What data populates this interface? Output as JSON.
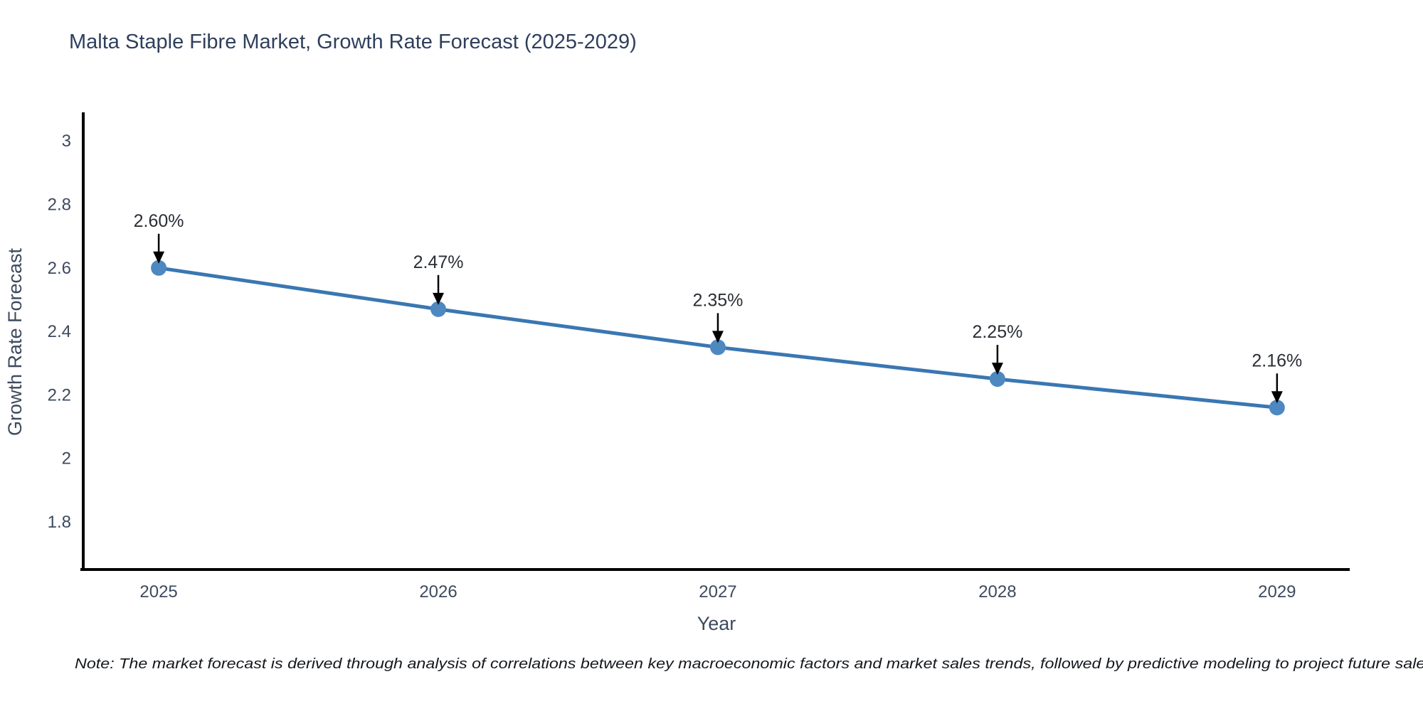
{
  "title": {
    "text": "Malta Staple Fibre Market, Growth Rate Forecast (2025-2029)",
    "color": "#2f3f5c"
  },
  "note": {
    "text": "Note: The market forecast is derived through analysis of correlations between key macroeconomic factors and market sales trends, followed by predictive modeling to project future sales"
  },
  "chart_data": {
    "type": "line",
    "title": "Malta Staple Fibre Market, Growth Rate Forecast (2025-2029)",
    "xlabel": "Year",
    "ylabel": "Growth Rate Forecast",
    "x": [
      2025,
      2026,
      2027,
      2028,
      2029
    ],
    "x_tick_labels": [
      "2025",
      "2026",
      "2027",
      "2028",
      "2029"
    ],
    "values": [
      2.6,
      2.47,
      2.35,
      2.25,
      2.16
    ],
    "point_labels": [
      "2.60%",
      "2.47%",
      "2.35%",
      "2.25%",
      "2.16%"
    ],
    "y_tick_values": [
      1.8,
      2,
      2.2,
      2.4,
      2.6,
      2.8,
      3
    ],
    "y_tick_labels": [
      "1.8",
      "2",
      "2.2",
      "2.4",
      "2.6",
      "2.8",
      "3"
    ],
    "xlim": [
      2024.73,
      2029.26
    ],
    "ylim": [
      1.65,
      3.09
    ],
    "grid": false,
    "legend": "none",
    "annotations": "black down-arrow from each value label to its data point",
    "colors": {
      "line": "#3a77b2",
      "marker": "#4d88c0",
      "axis": "#000000",
      "arrow": "#000000",
      "tick_text": "#3d4a5d",
      "point_label_text": "#2a2e35",
      "title_text": "#2f3f5c",
      "note_text": "#15181d",
      "background": "#ffffff"
    }
  }
}
